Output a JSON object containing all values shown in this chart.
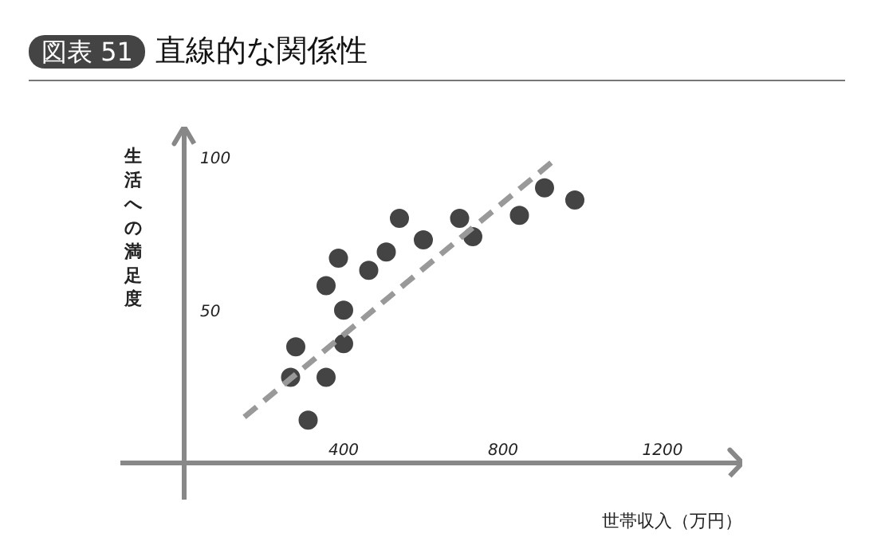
{
  "chart_data": {
    "type": "scatter",
    "title": "直線的な関係性",
    "annotations": [
      "図表 51"
    ],
    "xlabel": "世帯収入（万円）",
    "ylabel": "生活への満足度",
    "xlim": [
      -160,
      1400
    ],
    "ylim": [
      -12,
      110
    ],
    "xticks": [
      400,
      800,
      1200
    ],
    "yticks": [
      50,
      100
    ],
    "grid": false,
    "marker": "circle",
    "series": [
      {
        "color": "#444444",
        "x": [
          280,
          267,
          311,
          356,
          356,
          387,
          400,
          400,
          463,
          507,
          540,
          600,
          691,
          724,
          841,
          904,
          980
        ],
        "values": [
          38,
          28,
          14,
          28,
          58,
          67,
          50,
          39,
          63,
          69,
          80,
          73,
          80,
          74,
          81,
          90,
          86
        ]
      },
      {
        "type": "line",
        "color": "#999999",
        "line_style": "dashed",
        "marker": "none",
        "x": [
          151,
          937
        ],
        "values": [
          15,
          100
        ]
      }
    ]
  }
}
